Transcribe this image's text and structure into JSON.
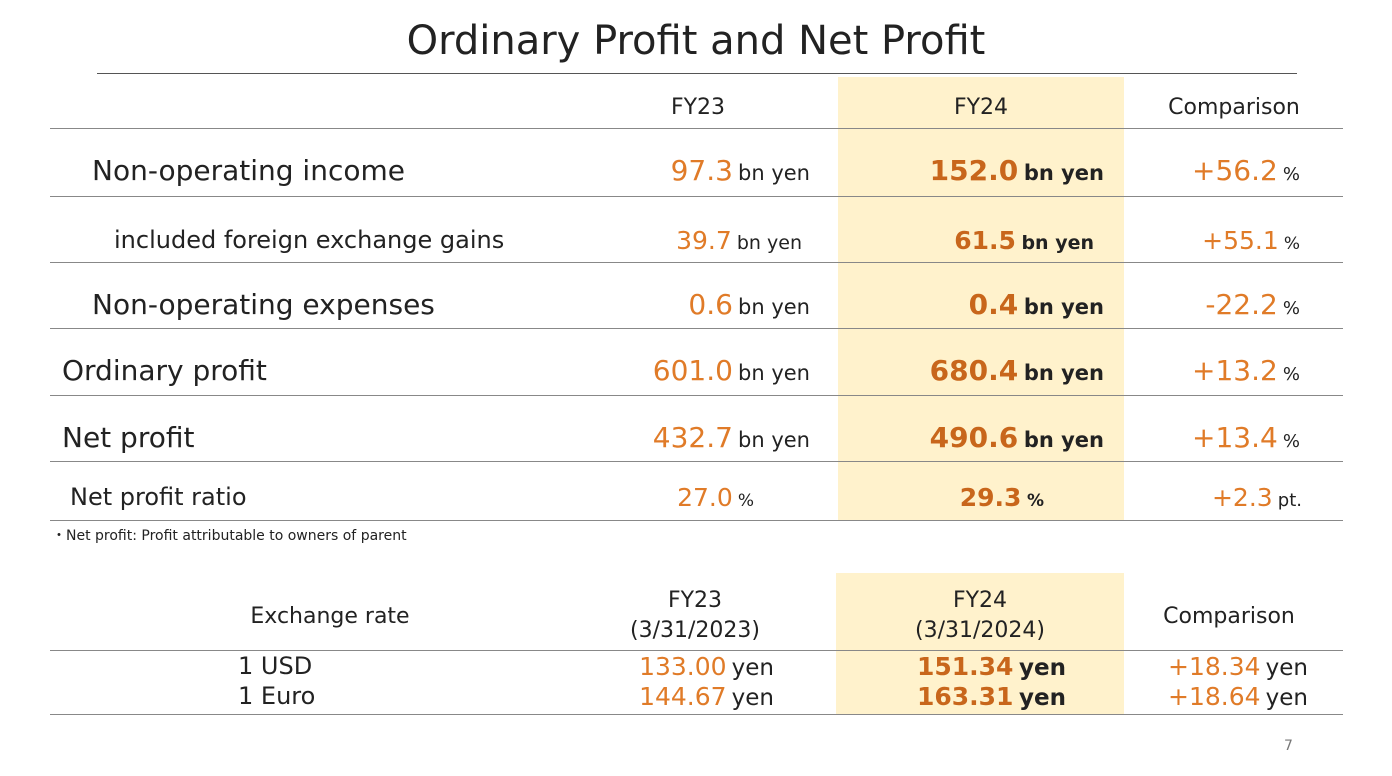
{
  "title": "Ordinary Profit and Net Profit",
  "colors": {
    "accent": "#e07b28",
    "accent_bold": "#c8661b",
    "highlight": "#fff2cc"
  },
  "profit_table": {
    "headers": [
      "FY23",
      "FY24",
      "Comparison"
    ],
    "rows": [
      {
        "label": "Non-operating income",
        "fy23": "97.3",
        "fy23_unit": "bn yen",
        "fy24": "152.0",
        "fy24_unit": "bn yen",
        "cmp": "+56.2",
        "cmp_unit": "%"
      },
      {
        "label": "included foreign exchange gains",
        "fy23": "39.7",
        "fy23_unit": "bn yen",
        "fy24": "61.5",
        "fy24_unit": "bn yen",
        "cmp": "+55.1",
        "cmp_unit": "%"
      },
      {
        "label": "Non-operating expenses",
        "fy23": "0.6",
        "fy23_unit": "bn yen",
        "fy24": "0.4",
        "fy24_unit": "bn yen",
        "cmp": "-22.2",
        "cmp_unit": "%"
      },
      {
        "label": "Ordinary profit",
        "fy23": "601.0",
        "fy23_unit": "bn yen",
        "fy24": "680.4",
        "fy24_unit": "bn yen",
        "cmp": "+13.2",
        "cmp_unit": "%"
      },
      {
        "label": "Net profit",
        "fy23": "432.7",
        "fy23_unit": "bn yen",
        "fy24": "490.6",
        "fy24_unit": "bn yen",
        "cmp": "+13.4",
        "cmp_unit": "%"
      },
      {
        "label": "Net profit ratio",
        "fy23": "27.0",
        "fy23_unit": "%",
        "fy24": "29.3",
        "fy24_unit": "%",
        "cmp": "+2.3",
        "cmp_unit": "pt."
      }
    ]
  },
  "footnote": "・Net profit: Profit attributable to owners of parent",
  "fx_table": {
    "label_header": "Exchange rate",
    "fy23_header": "FY23",
    "fy23_date": "(3/31/2023)",
    "fy24_header": "FY24",
    "fy24_date": "(3/31/2024)",
    "cmp_header": "Comparison",
    "rows": [
      {
        "label": "1 USD",
        "fy23": "133.00",
        "fy23_unit": "yen",
        "fy24": "151.34",
        "fy24_unit": "yen",
        "cmp": "+18.34",
        "cmp_unit": "yen"
      },
      {
        "label": "1 Euro",
        "fy23": "144.67",
        "fy23_unit": "yen",
        "fy24": "163.31",
        "fy24_unit": "yen",
        "cmp": "+18.64",
        "cmp_unit": "yen"
      }
    ]
  },
  "page_number": "7"
}
